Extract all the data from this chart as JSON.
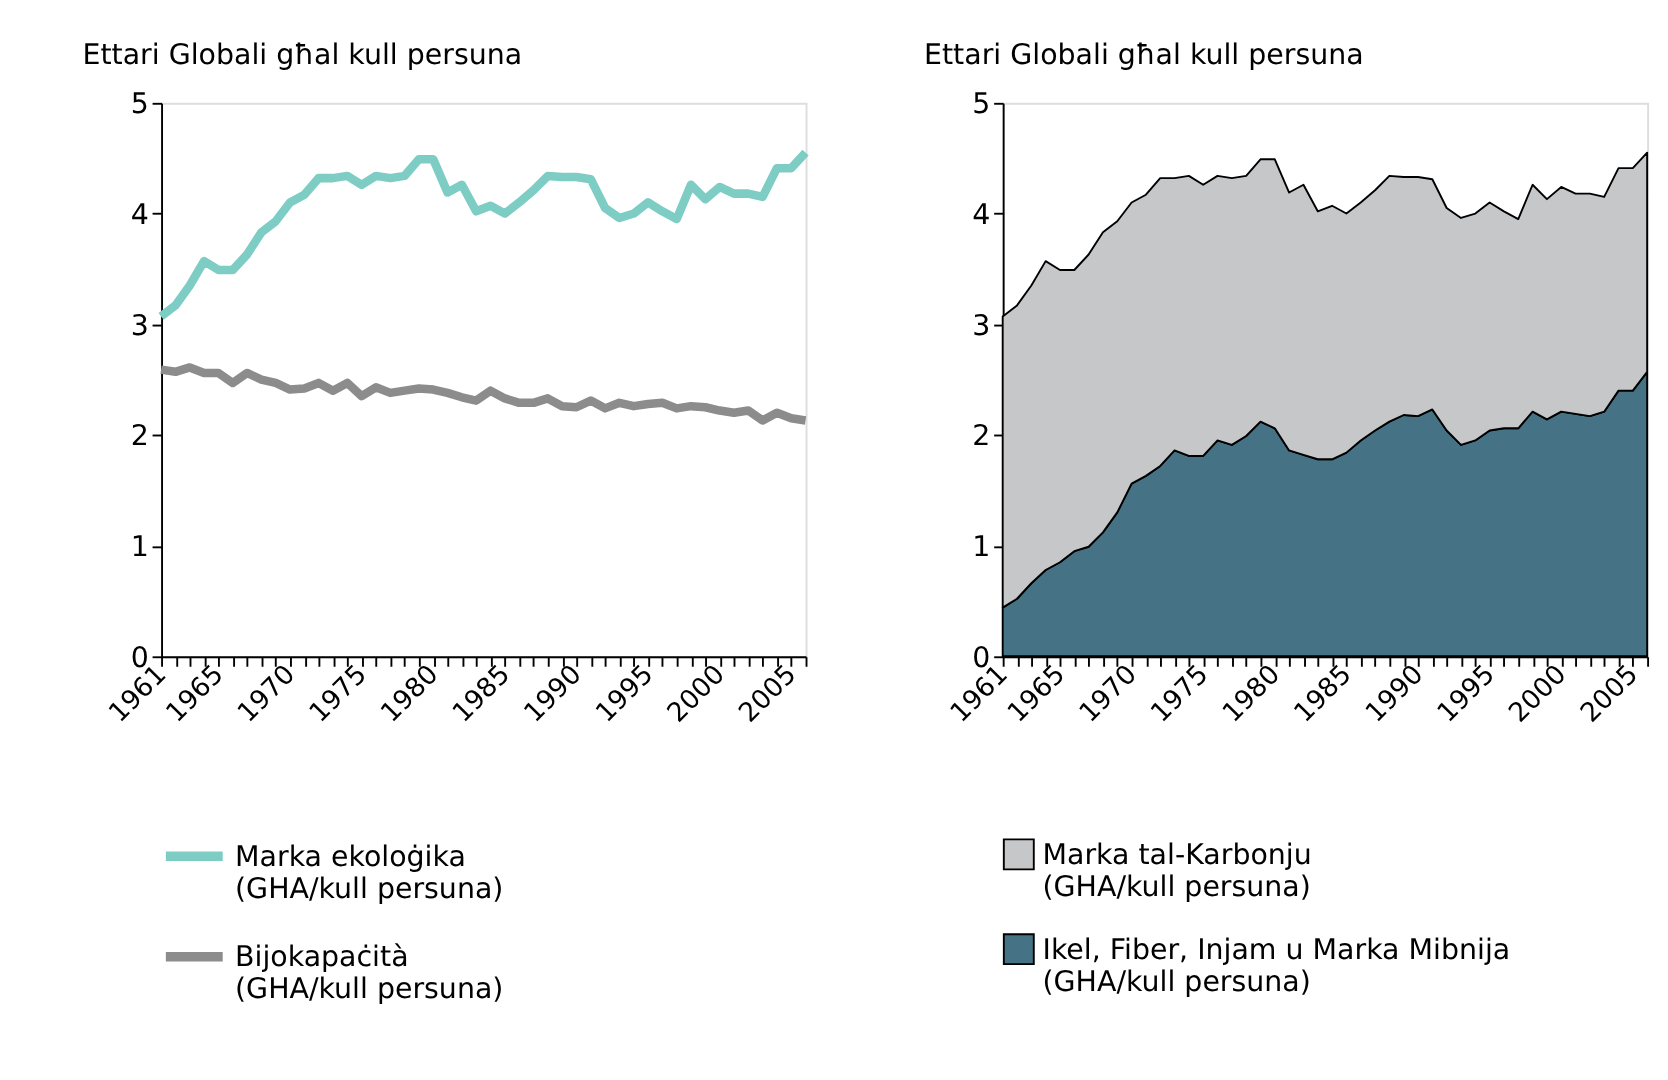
{
  "chart_data": [
    {
      "type": "line",
      "ylabel": "Ettari Globali għal kull persuna",
      "x": [
        1961,
        1962,
        1963,
        1964,
        1965,
        1966,
        1967,
        1968,
        1969,
        1970,
        1971,
        1972,
        1973,
        1974,
        1975,
        1976,
        1977,
        1978,
        1979,
        1980,
        1981,
        1982,
        1983,
        1984,
        1985,
        1986,
        1987,
        1988,
        1989,
        1990,
        1991,
        1992,
        1993,
        1994,
        1995,
        1996,
        1997,
        1998,
        1999,
        2000,
        2001,
        2002,
        2003,
        2004,
        2005,
        2006
      ],
      "xlim": [
        1961,
        2006
      ],
      "xticks": [
        1961,
        {
          "value": 1962,
          "label": null
        },
        {
          "value": 1963,
          "label": null
        },
        {
          "value": 1964,
          "label": null
        },
        1965,
        {
          "value": 1966,
          "label": null
        },
        {
          "value": 1967,
          "label": null
        },
        {
          "value": 1968,
          "label": null
        },
        {
          "value": 1969,
          "label": null
        },
        1970,
        {
          "value": 1971,
          "label": null
        },
        {
          "value": 1972,
          "label": null
        },
        {
          "value": 1973,
          "label": null
        },
        {
          "value": 1974,
          "label": null
        },
        1975,
        {
          "value": 1976,
          "label": null
        },
        {
          "value": 1977,
          "label": null
        },
        {
          "value": 1978,
          "label": null
        },
        {
          "value": 1979,
          "label": null
        },
        1980,
        {
          "value": 1981,
          "label": null
        },
        {
          "value": 1982,
          "label": null
        },
        {
          "value": 1983,
          "label": null
        },
        {
          "value": 1984,
          "label": null
        },
        1985,
        {
          "value": 1986,
          "label": null
        },
        {
          "value": 1987,
          "label": null
        },
        {
          "value": 1988,
          "label": null
        },
        {
          "value": 1989,
          "label": null
        },
        1990,
        {
          "value": 1991,
          "label": null
        },
        {
          "value": 1992,
          "label": null
        },
        {
          "value": 1993,
          "label": null
        },
        {
          "value": 1994,
          "label": null
        },
        1995,
        {
          "value": 1996,
          "label": null
        },
        {
          "value": 1997,
          "label": null
        },
        {
          "value": 1998,
          "label": null
        },
        {
          "value": 1999,
          "label": null
        },
        2000,
        {
          "value": 2001,
          "label": null
        },
        {
          "value": 2002,
          "label": null
        },
        {
          "value": 2003,
          "label": null
        },
        {
          "value": 2004,
          "label": null
        },
        2005,
        {
          "value": 2006,
          "label": null
        }
      ],
      "ylim": [
        0,
        5
      ],
      "yticks": [
        0,
        1,
        2,
        3,
        4,
        5
      ],
      "grid": false,
      "legend": "bottom",
      "marker": "none",
      "line_style": "solid",
      "series": [
        {
          "name": "Marka ekoloġika (GHA/kull persuna)",
          "color": "#7ecdc4",
          "values": [
            3.07,
            3.17,
            3.35,
            3.57,
            3.49,
            3.49,
            3.63,
            3.83,
            3.93,
            4.1,
            4.17,
            4.32,
            4.32,
            4.34,
            4.26,
            4.34,
            4.32,
            4.34,
            4.49,
            4.49,
            4.19,
            4.26,
            4.02,
            4.07,
            4.0,
            4.1,
            4.21,
            4.34,
            4.33,
            4.33,
            4.31,
            4.05,
            3.96,
            4.0,
            4.1,
            4.02,
            3.95,
            4.26,
            4.13,
            4.24,
            4.18,
            4.18,
            4.15,
            4.41,
            4.41,
            4.55
          ]
        },
        {
          "name": "Bijokapaċità (GHA/kull persuna)",
          "color": "#8c8c8c",
          "values": [
            2.59,
            2.57,
            2.61,
            2.56,
            2.56,
            2.47,
            2.56,
            2.5,
            2.47,
            2.41,
            2.42,
            2.47,
            2.4,
            2.47,
            2.35,
            2.43,
            2.38,
            2.4,
            2.42,
            2.41,
            2.38,
            2.34,
            2.31,
            2.4,
            2.33,
            2.29,
            2.29,
            2.33,
            2.26,
            2.25,
            2.31,
            2.24,
            2.29,
            2.26,
            2.28,
            2.29,
            2.24,
            2.26,
            2.25,
            2.22,
            2.2,
            2.22,
            2.13,
            2.2,
            2.15,
            2.13
          ]
        }
      ]
    },
    {
      "type": "area",
      "stacked": true,
      "ylabel": "Ettari Globali għal kull persuna",
      "x": [
        1961,
        1962,
        1963,
        1964,
        1965,
        1966,
        1967,
        1968,
        1969,
        1970,
        1971,
        1972,
        1973,
        1974,
        1975,
        1976,
        1977,
        1978,
        1979,
        1980,
        1981,
        1982,
        1983,
        1984,
        1985,
        1986,
        1987,
        1988,
        1989,
        1990,
        1991,
        1992,
        1993,
        1994,
        1995,
        1996,
        1997,
        1998,
        1999,
        2000,
        2001,
        2002,
        2003,
        2004,
        2005,
        2006
      ],
      "xlim": [
        1961,
        2006
      ],
      "xticks": [
        1961,
        {
          "value": 1962,
          "label": null
        },
        {
          "value": 1963,
          "label": null
        },
        {
          "value": 1964,
          "label": null
        },
        1965,
        {
          "value": 1966,
          "label": null
        },
        {
          "value": 1967,
          "label": null
        },
        {
          "value": 1968,
          "label": null
        },
        {
          "value": 1969,
          "label": null
        },
        1970,
        {
          "value": 1971,
          "label": null
        },
        {
          "value": 1972,
          "label": null
        },
        {
          "value": 1973,
          "label": null
        },
        {
          "value": 1974,
          "label": null
        },
        1975,
        {
          "value": 1976,
          "label": null
        },
        {
          "value": 1977,
          "label": null
        },
        {
          "value": 1978,
          "label": null
        },
        {
          "value": 1979,
          "label": null
        },
        1980,
        {
          "value": 1981,
          "label": null
        },
        {
          "value": 1982,
          "label": null
        },
        {
          "value": 1983,
          "label": null
        },
        {
          "value": 1984,
          "label": null
        },
        1985,
        {
          "value": 1986,
          "label": null
        },
        {
          "value": 1987,
          "label": null
        },
        {
          "value": 1988,
          "label": null
        },
        {
          "value": 1989,
          "label": null
        },
        1990,
        {
          "value": 1991,
          "label": null
        },
        {
          "value": 1992,
          "label": null
        },
        {
          "value": 1993,
          "label": null
        },
        {
          "value": 1994,
          "label": null
        },
        1995,
        {
          "value": 1996,
          "label": null
        },
        {
          "value": 1997,
          "label": null
        },
        {
          "value": 1998,
          "label": null
        },
        {
          "value": 1999,
          "label": null
        },
        2000,
        {
          "value": 2001,
          "label": null
        },
        {
          "value": 2002,
          "label": null
        },
        {
          "value": 2003,
          "label": null
        },
        {
          "value": 2004,
          "label": null
        },
        2005,
        {
          "value": 2006,
          "label": null
        }
      ],
      "ylim": [
        0,
        5
      ],
      "yticks": [
        0,
        1,
        2,
        3,
        4,
        5
      ],
      "grid": false,
      "legend": "bottom",
      "series": [
        {
          "name": "Ikel, Fiber, Injam u Marka Mibnija (GHA/kull persuna)",
          "color": "#457385",
          "values": [
            0.44,
            0.52,
            0.66,
            0.78,
            0.85,
            0.95,
            0.99,
            1.12,
            1.3,
            1.56,
            1.63,
            1.72,
            1.86,
            1.81,
            1.81,
            1.95,
            1.91,
            1.99,
            2.12,
            2.06,
            1.86,
            1.82,
            1.78,
            1.78,
            1.84,
            1.95,
            2.04,
            2.12,
            2.18,
            2.17,
            2.23,
            2.04,
            1.91,
            1.95,
            2.04,
            2.06,
            2.06,
            2.21,
            2.14,
            2.21,
            2.19,
            2.17,
            2.21,
            2.4,
            2.4,
            2.57
          ]
        },
        {
          "name": "Marka tal-Karbonju (GHA/kull persuna)",
          "color": "#c6c7c9",
          "values": [
            2.63,
            2.65,
            2.69,
            2.79,
            2.64,
            2.54,
            2.64,
            2.71,
            2.63,
            2.54,
            2.54,
            2.6,
            2.46,
            2.53,
            2.45,
            2.39,
            2.41,
            2.35,
            2.37,
            2.43,
            2.33,
            2.44,
            2.24,
            2.29,
            2.16,
            2.15,
            2.17,
            2.22,
            2.15,
            2.16,
            2.08,
            2.01,
            2.05,
            2.05,
            2.06,
            1.96,
            1.89,
            2.05,
            1.99,
            2.03,
            1.99,
            2.01,
            1.94,
            2.01,
            2.01,
            1.98
          ]
        }
      ]
    }
  ]
}
